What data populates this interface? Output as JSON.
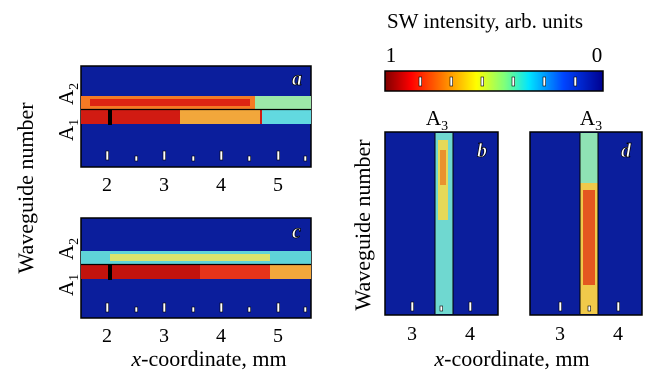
{
  "figure": {
    "colorbar": {
      "title": "SW intensity, arb. units",
      "left_label": "1",
      "right_label": "0"
    },
    "left_ylabel": "Waveguide number",
    "right_ylabel": "Waveguide number",
    "left_xlabel_italic": "x",
    "left_xlabel_rest": "-coordinate, mm",
    "right_xlabel_italic": "x",
    "right_xlabel_rest": "-coordinate, mm",
    "colors": {
      "background": "#0b1e9c",
      "frame": "#000000"
    }
  },
  "chart_data": [
    {
      "type": "heatmap",
      "panel": "a",
      "orientation": "horizontal",
      "x_ticks": [
        "2",
        "3",
        "4",
        "5"
      ],
      "xlim": [
        1.5,
        5.5
      ],
      "waveguides": [
        {
          "label": "A",
          "sub": "2",
          "mean_intensity": 0.7
        },
        {
          "label": "A",
          "sub": "1",
          "mean_intensity": 0.8
        }
      ]
    },
    {
      "type": "heatmap",
      "panel": "c",
      "orientation": "horizontal",
      "x_ticks": [
        "2",
        "3",
        "4",
        "5"
      ],
      "xlim": [
        1.5,
        5.5
      ],
      "waveguides": [
        {
          "label": "A",
          "sub": "2",
          "mean_intensity": 0.45
        },
        {
          "label": "A",
          "sub": "1",
          "mean_intensity": 0.9
        }
      ]
    },
    {
      "type": "heatmap",
      "panel": "b",
      "orientation": "vertical",
      "x_ticks": [
        "3",
        "4"
      ],
      "xlim": [
        2.5,
        4.5
      ],
      "waveguides": [
        {
          "label": "A",
          "sub": "3",
          "mean_intensity": 0.5
        }
      ]
    },
    {
      "type": "heatmap",
      "panel": "d",
      "orientation": "vertical",
      "x_ticks": [
        "3",
        "4"
      ],
      "xlim": [
        2.5,
        4.5
      ],
      "waveguides": [
        {
          "label": "A",
          "sub": "3",
          "mean_intensity": 0.65
        }
      ]
    }
  ]
}
